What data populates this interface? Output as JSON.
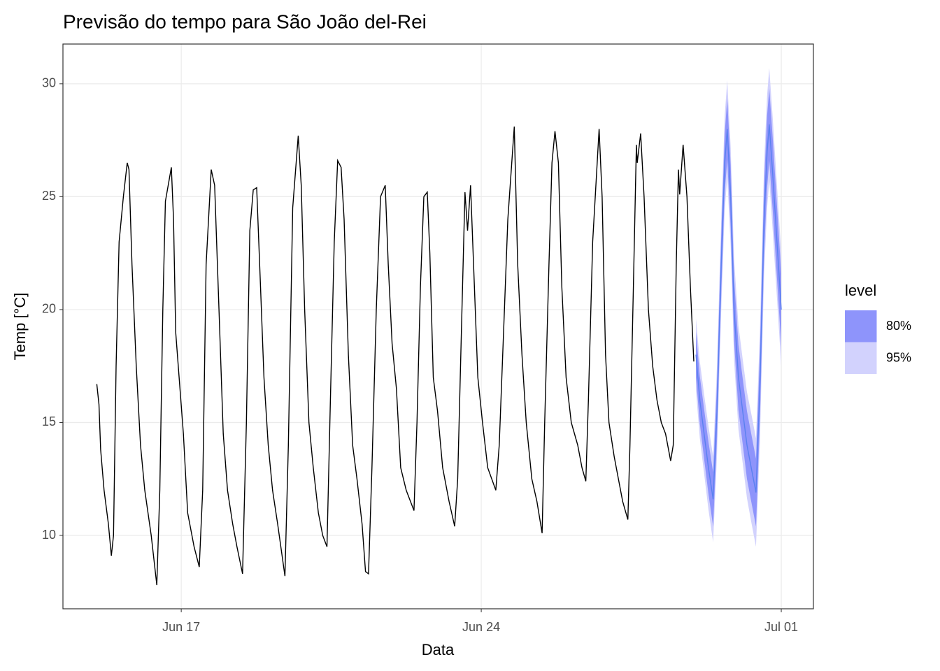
{
  "chart_data": {
    "type": "line",
    "title": "Previsão do tempo para São João del-Rei",
    "x_label": "Data",
    "y_label": "Temp [°C]",
    "xlim": [
      14.24,
      31.75
    ],
    "ylim": [
      6.75,
      31.76
    ],
    "xticks": [
      {
        "value": 17,
        "label": "Jun 17"
      },
      {
        "value": 24,
        "label": "Jun 24"
      },
      {
        "value": 31,
        "label": "Jul 01"
      }
    ],
    "yticks": [
      10,
      15,
      20,
      25,
      30
    ],
    "grid": true,
    "legend_title": "level",
    "series": [
      {
        "color": "#000000",
        "x": [
          15.03,
          15.08,
          15.12,
          15.2,
          15.3,
          15.37,
          15.42,
          15.48,
          15.55,
          15.65,
          15.74,
          15.78,
          15.85,
          15.95,
          16.05,
          16.15,
          16.3,
          16.43,
          16.5,
          16.57,
          16.63,
          16.77,
          16.82,
          16.87,
          16.95,
          17.05,
          17.15,
          17.3,
          17.42,
          17.5,
          17.58,
          17.7,
          17.78,
          17.88,
          17.98,
          18.08,
          18.2,
          18.3,
          18.43,
          18.52,
          18.6,
          18.68,
          18.76,
          18.85,
          18.93,
          19.03,
          19.13,
          19.25,
          19.42,
          19.5,
          19.6,
          19.73,
          19.8,
          19.88,
          19.98,
          20.08,
          20.2,
          20.3,
          20.4,
          20.48,
          20.57,
          20.65,
          20.73,
          20.8,
          20.9,
          21.0,
          21.1,
          21.22,
          21.3,
          21.37,
          21.45,
          21.55,
          21.65,
          21.76,
          21.83,
          21.92,
          22.02,
          22.12,
          22.25,
          22.43,
          22.5,
          22.58,
          22.66,
          22.74,
          22.8,
          22.88,
          22.98,
          23.1,
          23.25,
          23.38,
          23.45,
          23.55,
          23.62,
          23.68,
          23.75,
          23.83,
          23.92,
          24.03,
          24.15,
          24.34,
          24.42,
          24.52,
          24.62,
          24.77,
          24.85,
          24.95,
          25.05,
          25.18,
          25.3,
          25.42,
          25.48,
          25.58,
          25.65,
          25.72,
          25.8,
          25.88,
          25.98,
          26.1,
          26.25,
          26.35,
          26.44,
          26.5,
          26.6,
          26.75,
          26.82,
          26.9,
          26.98,
          27.1,
          27.2,
          27.3,
          27.42,
          27.47,
          27.55,
          27.62,
          27.64,
          27.72,
          27.8,
          27.9,
          28.0,
          28.1,
          28.2,
          28.3,
          28.42,
          28.48,
          28.55,
          28.6,
          28.63,
          28.71,
          28.8,
          28.88,
          28.96
        ],
        "values": [
          16.7,
          15.8,
          13.8,
          12.0,
          10.5,
          9.1,
          10.0,
          17.5,
          23.0,
          25.0,
          26.5,
          26.2,
          22.0,
          17.5,
          14.0,
          12.0,
          10.0,
          7.8,
          12.0,
          20.0,
          24.8,
          26.3,
          24.0,
          19.0,
          17.0,
          14.5,
          11.0,
          9.5,
          8.6,
          12.0,
          22.0,
          26.2,
          25.5,
          20.0,
          14.5,
          12.0,
          10.5,
          9.5,
          8.3,
          15.0,
          23.5,
          25.3,
          25.4,
          21.0,
          17.0,
          14.0,
          12.0,
          10.5,
          8.2,
          14.0,
          24.5,
          27.7,
          25.5,
          20.0,
          15.0,
          13.0,
          11.0,
          10.0,
          9.5,
          16.0,
          23.0,
          26.6,
          26.3,
          24.0,
          18.0,
          14.0,
          12.5,
          10.5,
          8.4,
          8.3,
          13.0,
          20.0,
          25.0,
          25.5,
          22.0,
          18.5,
          16.5,
          13.0,
          12.0,
          11.1,
          15.0,
          21.0,
          25.0,
          25.2,
          22.5,
          17.0,
          15.5,
          13.0,
          11.5,
          10.4,
          12.5,
          20.0,
          25.2,
          23.5,
          25.5,
          21.5,
          17.0,
          15.0,
          13.0,
          12.0,
          14.0,
          19.0,
          24.0,
          28.1,
          22.0,
          18.0,
          15.0,
          12.5,
          11.5,
          10.1,
          15.0,
          22.0,
          26.5,
          27.9,
          26.5,
          21.0,
          17.0,
          15.0,
          14.0,
          13.0,
          12.4,
          16.0,
          23.0,
          28.0,
          25.0,
          18.0,
          15.0,
          13.5,
          12.5,
          11.5,
          10.7,
          14.0,
          21.0,
          27.3,
          26.5,
          27.8,
          25.0,
          20.0,
          17.5,
          16.0,
          15.0,
          14.5,
          13.3,
          14.0,
          22.0,
          26.2,
          25.1,
          27.3,
          25.0,
          21.0,
          17.7
        ]
      }
    ],
    "forecast": {
      "color": "#5a80f0",
      "x": [
        29.01,
        29.1,
        29.2,
        29.3,
        29.41,
        29.5,
        29.6,
        29.68,
        29.74,
        29.82,
        29.9,
        30.0,
        30.1,
        30.2,
        30.3,
        30.41,
        30.5,
        30.6,
        30.67,
        30.72,
        30.8,
        30.9,
        31.0
      ],
      "values": [
        18.0,
        16.0,
        14.5,
        13.0,
        11.6,
        15.5,
        22.0,
        26.5,
        28.0,
        25.0,
        20.0,
        17.0,
        15.5,
        14.0,
        13.0,
        11.9,
        16.5,
        24.0,
        27.0,
        28.2,
        26.0,
        23.0,
        20.0
      ]
    },
    "intervals": [
      {
        "name": "80%",
        "color": "#8e94fb",
        "lower": [
          17.0,
          14.95,
          13.4,
          11.85,
          10.4,
          14.25,
          20.7,
          25.2,
          26.65,
          23.6,
          18.6,
          15.55,
          14.05,
          12.5,
          11.5,
          10.4,
          14.95,
          22.45,
          25.4,
          26.6,
          24.4,
          21.4,
          18.4
        ],
        "upper": [
          19.0,
          17.05,
          15.6,
          14.15,
          12.8,
          16.75,
          23.3,
          27.8,
          29.35,
          26.4,
          21.4,
          18.45,
          16.95,
          15.5,
          14.5,
          13.4,
          18.05,
          25.55,
          28.6,
          29.8,
          27.6,
          24.6,
          21.6
        ]
      },
      {
        "name": "95%",
        "color": "#d2d2fd",
        "lower": [
          16.4,
          14.3,
          12.75,
          11.15,
          9.7,
          13.5,
          19.95,
          24.4,
          25.85,
          22.8,
          17.75,
          14.7,
          13.2,
          11.65,
          10.6,
          9.5,
          14.05,
          21.55,
          24.5,
          25.7,
          23.5,
          20.5,
          17.5
        ],
        "upper": [
          19.6,
          17.7,
          16.25,
          14.85,
          13.5,
          17.5,
          24.05,
          28.6,
          30.15,
          27.2,
          22.25,
          19.3,
          17.8,
          16.35,
          15.4,
          14.3,
          18.95,
          26.45,
          29.5,
          30.7,
          28.5,
          25.5,
          22.5
        ]
      }
    ]
  }
}
